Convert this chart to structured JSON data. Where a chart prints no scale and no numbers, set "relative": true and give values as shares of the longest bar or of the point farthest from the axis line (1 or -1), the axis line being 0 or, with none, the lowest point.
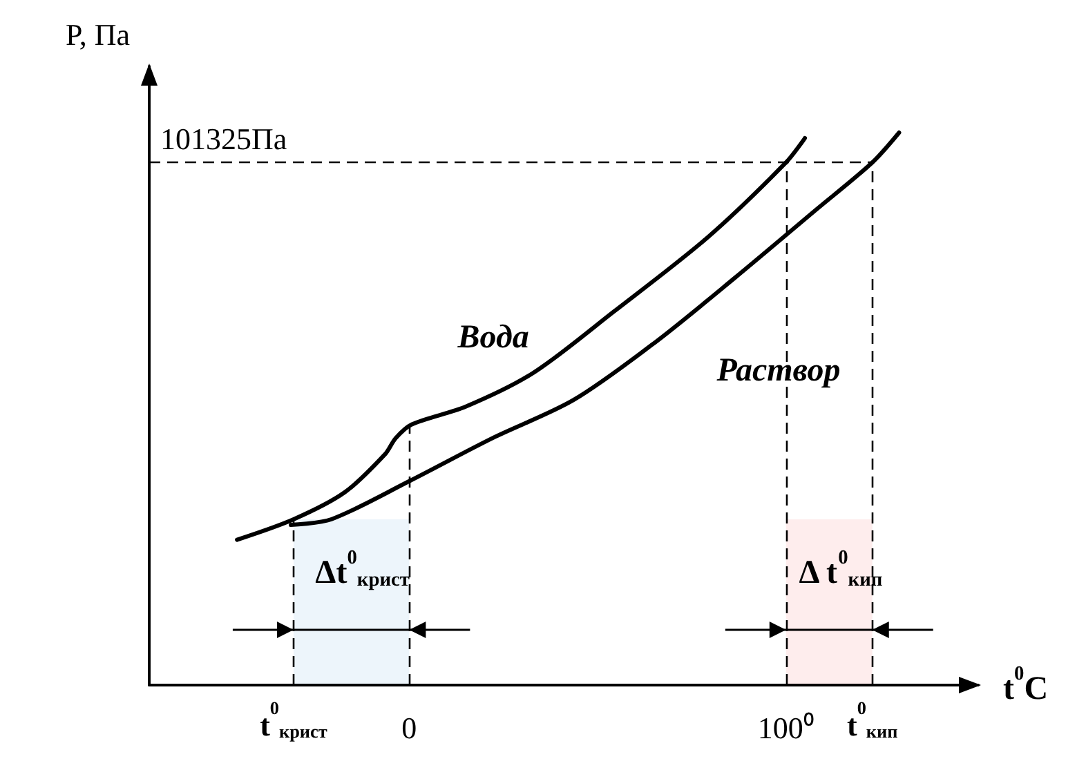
{
  "chart_data": {
    "type": "line",
    "relative": true,
    "xlabel": "t$^{0}$C",
    "ylabel": "P, Па",
    "xlim": [
      -69,
      151
    ],
    "xticks": [
      0,
      {
        "value": 100,
        "label": "100⁰"
      }
    ],
    "grid": false,
    "marker": "none",
    "line_style": "solid",
    "series": [
      {
        "name": "Вода",
        "color": "#000000",
        "x": [
          -45.7,
          -30.7,
          -17.1,
          -6.4,
          -3.6,
          0.7,
          15,
          32.9,
          54.3,
          79.3,
          100,
          105
        ],
        "values": [
          0.263,
          0.3,
          0.349,
          0.418,
          0.447,
          0.472,
          0.504,
          0.565,
          0.676,
          0.811,
          0.946,
          0.99
        ]
      },
      {
        "name": "Раствор",
        "color": "#000000",
        "x": [
          -31.4,
          -20.7,
          0,
          22.1,
          43.6,
          65,
          86.4,
          107.9,
          122.9,
          130
        ],
        "values": [
          0.29,
          0.3,
          0.369,
          0.447,
          0.516,
          0.619,
          0.737,
          0.86,
          0.946,
          1
        ]
      }
    ],
    "ref_lines": [
      {
        "axis": "y",
        "value": 0.946,
        "label": "101325Па",
        "line_style": "dashed"
      },
      {
        "axis": "x",
        "value": -30.7,
        "line_style": "dashed"
      },
      {
        "axis": "x",
        "value": 0,
        "line_style": "dashed"
      },
      {
        "axis": "x",
        "value": 100,
        "line_style": "dashed"
      },
      {
        "axis": "x",
        "value": 122.9,
        "line_style": "dashed"
      }
    ],
    "annotations": [
      {
        "text": "t$^{0}$$_{крист}$",
        "x": -30.7,
        "y": 0
      },
      {
        "text": "t$^{0}$$_{кип}$",
        "x": 122.9,
        "y": 0
      }
    ],
    "bands": [
      {
        "axis": "x",
        "from": -30.7,
        "to": 0,
        "label": "Δt$^{0}$$_{крист}$",
        "color": "#1f7acc"
      },
      {
        "axis": "x",
        "from": 100,
        "to": 122.9,
        "label": "Δ t$^{0}$$_{кип}$",
        "color": "#ee1c1c"
      }
    ]
  }
}
